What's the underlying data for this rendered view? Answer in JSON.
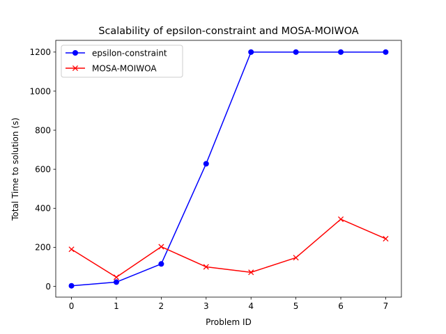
{
  "chart_data": {
    "type": "line",
    "title": "Scalability of epsilon-constraint and MOSA-MOIWOA",
    "xlabel": "Problem ID",
    "ylabel": "Total Time to solution (s)",
    "x": [
      0,
      1,
      2,
      3,
      4,
      5,
      6,
      7
    ],
    "xticks": [
      0,
      1,
      2,
      3,
      4,
      5,
      6,
      7
    ],
    "yticks": [
      0,
      200,
      400,
      600,
      800,
      1000,
      1200
    ],
    "xlim": [
      -0.35,
      7.35
    ],
    "ylim": [
      -55,
      1260
    ],
    "grid": false,
    "legend_position": "upper left",
    "series": [
      {
        "name": "epsilon-constraint",
        "color": "#0000ff",
        "marker": "circle",
        "values": [
          3,
          22,
          115,
          628,
          1200,
          1200,
          1200,
          1200
        ]
      },
      {
        "name": "MOSA-MOIWOA",
        "color": "#ff0000",
        "marker": "x",
        "values": [
          190,
          47,
          203,
          100,
          72,
          147,
          344,
          244
        ]
      }
    ]
  }
}
